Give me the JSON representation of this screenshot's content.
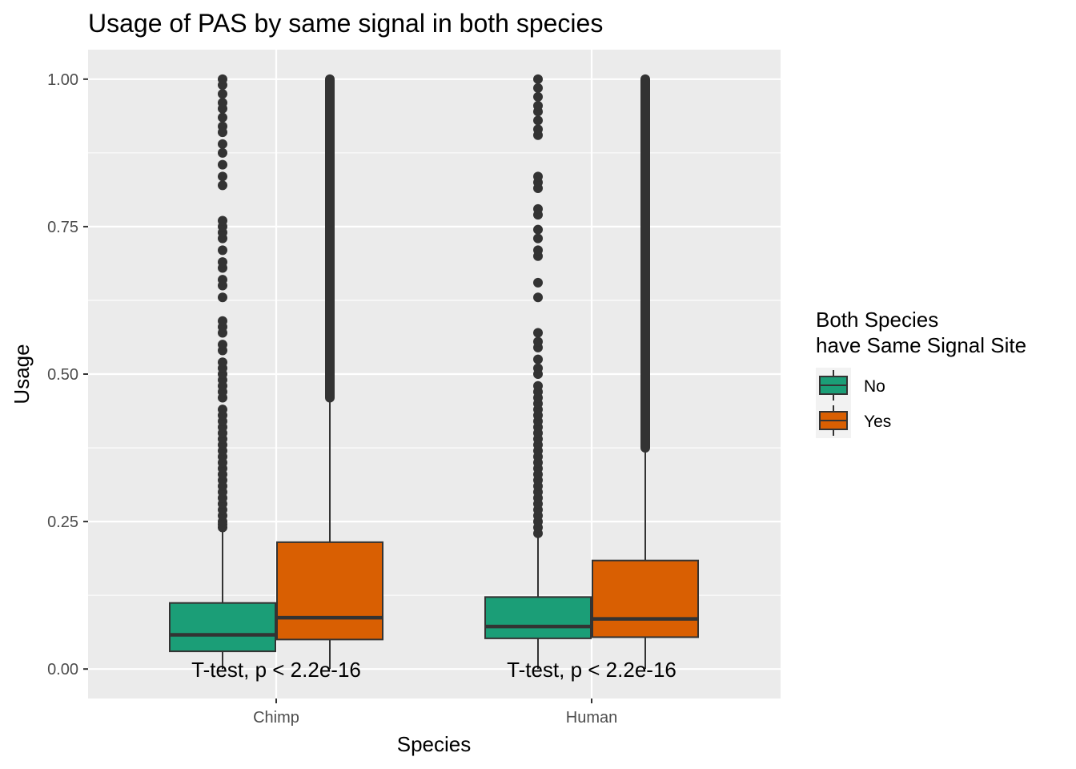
{
  "chart_data": {
    "type": "boxplot",
    "title": "Usage of PAS by same signal in both species",
    "xlabel": "Species",
    "ylabel": "Usage",
    "categories": [
      "Chimp",
      "Human"
    ],
    "ylim": [
      -0.05,
      1.05
    ],
    "yticks": [
      0.0,
      0.25,
      0.5,
      0.75,
      1.0
    ],
    "ytick_labels": [
      "0.00",
      "0.25",
      "0.50",
      "0.75",
      "1.00"
    ],
    "grid": true,
    "legend": {
      "title_lines": [
        "Both Species",
        "have Same Signal Site"
      ],
      "placement": "right",
      "entries": [
        "No",
        "Yes"
      ]
    },
    "colors": {
      "No": "#1b9e77",
      "Yes": "#d95f02",
      "panel": "#ebebeb",
      "grid": "#ffffff",
      "outline": "#333333"
    },
    "series": [
      {
        "name": "No",
        "boxes": [
          {
            "category": "Chimp",
            "whisker_low": 0.0,
            "q1": 0.03,
            "median": 0.058,
            "q3": 0.112,
            "whisker_high": 0.234,
            "outliers": [
              0.24,
              0.245,
              0.25,
              0.26,
              0.27,
              0.28,
              0.29,
              0.3,
              0.31,
              0.32,
              0.33,
              0.34,
              0.35,
              0.36,
              0.37,
              0.38,
              0.39,
              0.4,
              0.41,
              0.42,
              0.43,
              0.44,
              0.46,
              0.47,
              0.48,
              0.49,
              0.5,
              0.51,
              0.52,
              0.54,
              0.55,
              0.57,
              0.58,
              0.59,
              0.63,
              0.65,
              0.66,
              0.68,
              0.69,
              0.71,
              0.73,
              0.74,
              0.75,
              0.76,
              0.82,
              0.835,
              0.855,
              0.875,
              0.89,
              0.91,
              0.92,
              0.935,
              0.95,
              0.96,
              0.975,
              0.99,
              1.0
            ]
          },
          {
            "category": "Human",
            "whisker_low": 0.0,
            "q1": 0.052,
            "median": 0.072,
            "q3": 0.122,
            "whisker_high": 0.226,
            "outliers": [
              0.23,
              0.24,
              0.25,
              0.26,
              0.27,
              0.28,
              0.29,
              0.3,
              0.31,
              0.32,
              0.33,
              0.34,
              0.35,
              0.36,
              0.37,
              0.38,
              0.39,
              0.4,
              0.41,
              0.42,
              0.43,
              0.44,
              0.45,
              0.46,
              0.47,
              0.48,
              0.5,
              0.51,
              0.525,
              0.545,
              0.555,
              0.57,
              0.63,
              0.655,
              0.7,
              0.71,
              0.73,
              0.745,
              0.77,
              0.78,
              0.815,
              0.825,
              0.835,
              0.905,
              0.915,
              0.93,
              0.945,
              0.955,
              0.97,
              0.985,
              1.0
            ]
          }
        ]
      },
      {
        "name": "Yes",
        "boxes": [
          {
            "category": "Chimp",
            "whisker_low": 0.0,
            "q1": 0.05,
            "median": 0.087,
            "q3": 0.215,
            "whisker_high": 0.46,
            "outlier_band": [
              0.46,
              1.0
            ]
          },
          {
            "category": "Human",
            "whisker_low": 0.0,
            "q1": 0.054,
            "median": 0.085,
            "q3": 0.184,
            "whisker_high": 0.375,
            "outlier_band": [
              0.375,
              1.0
            ]
          }
        ]
      }
    ],
    "annotations": [
      {
        "category": "Chimp",
        "y": 0.0,
        "text": "T-test, p < 2.2e-16"
      },
      {
        "category": "Human",
        "y": 0.0,
        "text": "T-test, p < 2.2e-16"
      }
    ]
  }
}
